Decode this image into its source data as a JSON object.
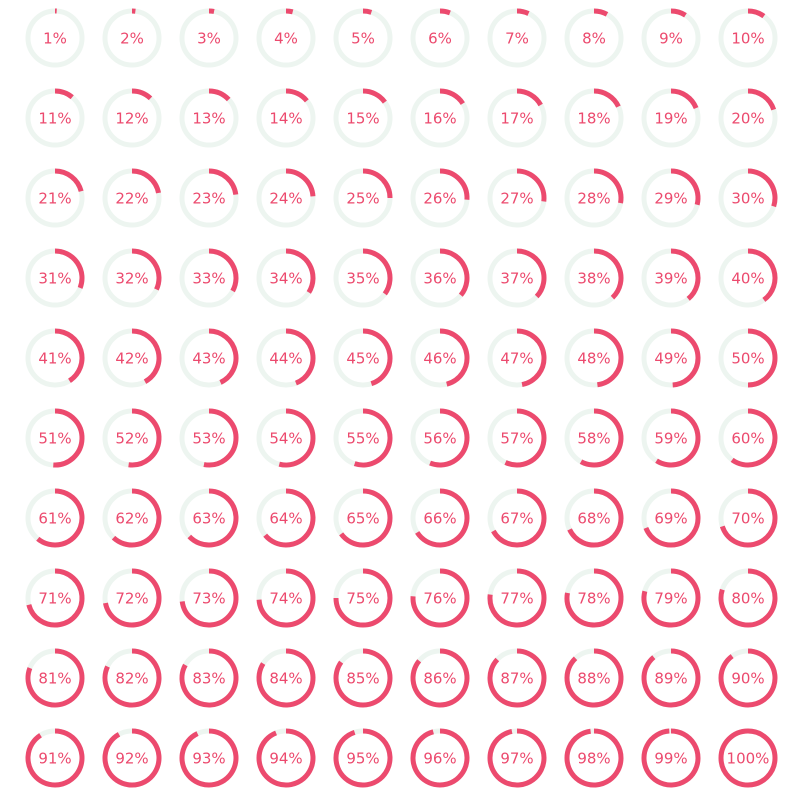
{
  "chart_data": {
    "type": "radial-progress",
    "color": "#ec4a6e",
    "track_color": "#edf5f0",
    "max": 100,
    "values": [
      1,
      2,
      3,
      4,
      5,
      6,
      7,
      8,
      9,
      10,
      11,
      12,
      13,
      14,
      15,
      16,
      17,
      18,
      19,
      20,
      21,
      22,
      23,
      24,
      25,
      26,
      27,
      28,
      29,
      30,
      31,
      32,
      33,
      34,
      35,
      36,
      37,
      38,
      39,
      40,
      41,
      42,
      43,
      44,
      45,
      46,
      47,
      48,
      49,
      50,
      51,
      52,
      53,
      54,
      55,
      56,
      57,
      58,
      59,
      60,
      61,
      62,
      63,
      64,
      65,
      66,
      67,
      68,
      69,
      70,
      71,
      72,
      73,
      74,
      75,
      76,
      77,
      78,
      79,
      80,
      81,
      82,
      83,
      84,
      85,
      86,
      87,
      88,
      89,
      90,
      91,
      92,
      93,
      94,
      95,
      96,
      97,
      98,
      99,
      100
    ],
    "value_labels": [
      "1%",
      "2%",
      "3%",
      "4%",
      "5%",
      "6%",
      "7%",
      "8%",
      "9%",
      "10%",
      "11%",
      "12%",
      "13%",
      "14%",
      "15%",
      "16%",
      "17%",
      "18%",
      "19%",
      "20%",
      "21%",
      "22%",
      "23%",
      "24%",
      "25%",
      "26%",
      "27%",
      "28%",
      "29%",
      "30%",
      "31%",
      "32%",
      "33%",
      "34%",
      "35%",
      "36%",
      "37%",
      "38%",
      "39%",
      "40%",
      "41%",
      "42%",
      "43%",
      "44%",
      "45%",
      "46%",
      "47%",
      "48%",
      "49%",
      "50%",
      "51%",
      "52%",
      "53%",
      "54%",
      "55%",
      "56%",
      "57%",
      "58%",
      "59%",
      "60%",
      "61%",
      "62%",
      "63%",
      "64%",
      "65%",
      "66%",
      "67%",
      "68%",
      "69%",
      "70%",
      "71%",
      "72%",
      "73%",
      "74%",
      "75%",
      "76%",
      "77%",
      "78%",
      "79%",
      "80%",
      "81%",
      "82%",
      "83%",
      "84%",
      "85%",
      "86%",
      "87%",
      "88%",
      "89%",
      "90%",
      "91%",
      "92%",
      "93%",
      "94%",
      "95%",
      "96%",
      "97%",
      "98%",
      "99%",
      "100%"
    ]
  }
}
